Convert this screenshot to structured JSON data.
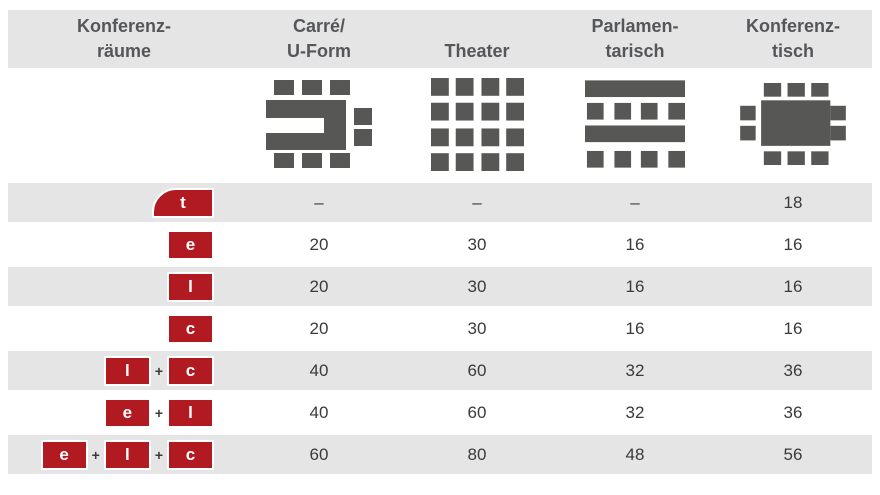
{
  "table": {
    "columns": [
      {
        "line1": "Konferenz-",
        "line2": "räume"
      },
      {
        "line1": "Carré/",
        "line2": "U-Form",
        "icon": "u-form-layout-icon"
      },
      {
        "line1": "",
        "line2": "Theater",
        "icon": "theater-layout-icon"
      },
      {
        "line1": "Parlamen-",
        "line2": "tarisch",
        "icon": "parliament-layout-icon"
      },
      {
        "line1": "Konferenz-",
        "line2": "tisch",
        "icon": "conference-table-layout-icon"
      }
    ],
    "plus_sign": "+",
    "rows": [
      {
        "badges": [
          "t"
        ],
        "values": [
          "–",
          "–",
          "–",
          "18"
        ]
      },
      {
        "badges": [
          "e"
        ],
        "values": [
          "20",
          "30",
          "16",
          "16"
        ]
      },
      {
        "badges": [
          "l"
        ],
        "values": [
          "20",
          "30",
          "16",
          "16"
        ]
      },
      {
        "badges": [
          "c"
        ],
        "values": [
          "20",
          "30",
          "16",
          "16"
        ]
      },
      {
        "badges": [
          "l",
          "c"
        ],
        "values": [
          "40",
          "60",
          "32",
          "36"
        ]
      },
      {
        "badges": [
          "e",
          "l"
        ],
        "values": [
          "40",
          "60",
          "32",
          "36"
        ]
      },
      {
        "badges": [
          "e",
          "l",
          "c"
        ],
        "values": [
          "60",
          "80",
          "48",
          "56"
        ]
      }
    ]
  },
  "colors": {
    "badge_red": "#b11a20",
    "row_gray": "#e5e5e5",
    "header_text": "#55565a",
    "icon_gray": "#575756",
    "value_text": "#3a3a39"
  }
}
